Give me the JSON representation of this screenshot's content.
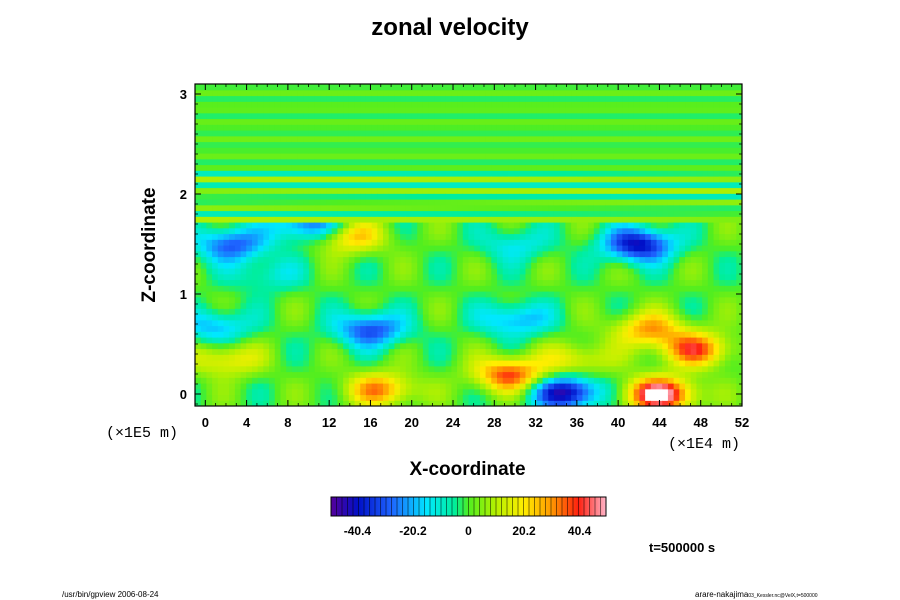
{
  "chart_data": {
    "type": "heatmap",
    "title": "zonal velocity",
    "xlabel": "X-coordinate",
    "ylabel": "Z-coordinate",
    "x_scale_label": "(×1E4 m)",
    "z_scale_label": "(×1E5 m)",
    "xlim": [
      -1,
      52
    ],
    "zlim": [
      -0.12,
      3.1
    ],
    "x_ticks": [
      0,
      4,
      8,
      12,
      16,
      20,
      24,
      28,
      32,
      36,
      40,
      44,
      48,
      52
    ],
    "z_ticks": [
      0,
      1,
      2,
      3
    ],
    "colorbar": {
      "range": [
        -50,
        50
      ],
      "tick_values": [
        -40.4,
        -20.2,
        0,
        20.2,
        40.4
      ],
      "tick_labels": [
        "-40.4",
        "-20.2",
        "0",
        "20.2",
        "40.4"
      ]
    },
    "features": [
      {
        "x": 44,
        "z": 0.0,
        "value": 52
      },
      {
        "x": 35,
        "z": 0.02,
        "value": -45
      },
      {
        "x": 17,
        "z": 0.05,
        "value": 30
      },
      {
        "x": 29.5,
        "z": 0.2,
        "value": 38
      },
      {
        "x": 47.5,
        "z": 0.45,
        "value": 35
      },
      {
        "x": 43,
        "z": 0.65,
        "value": 28
      },
      {
        "x": 16,
        "z": 0.65,
        "value": -32
      },
      {
        "x": 30,
        "z": 0.75,
        "value": -22
      },
      {
        "x": 42,
        "z": 1.5,
        "value": -42
      },
      {
        "x": 2.5,
        "z": 1.5,
        "value": -30
      },
      {
        "x": 14,
        "z": 1.58,
        "value": 25
      },
      {
        "x": 10,
        "z": 1.7,
        "value": -30
      },
      {
        "x": 30,
        "z": 1.5,
        "value": -14
      },
      {
        "x": 1,
        "z": 0.68,
        "value": -20
      },
      {
        "x": 2,
        "z": 0.35,
        "value": 20
      },
      {
        "x": 36,
        "z": 0.35,
        "value": 18
      },
      {
        "x": 6,
        "z": 1.2,
        "value": -12
      }
    ]
  },
  "time_label": "t=500000 s",
  "footer_left": "/usr/bin/gpview 2006-08-24",
  "footer_right": "arare-nakajima",
  "footer_right_small": "03_Kessler.nc@VelX,t=500000"
}
